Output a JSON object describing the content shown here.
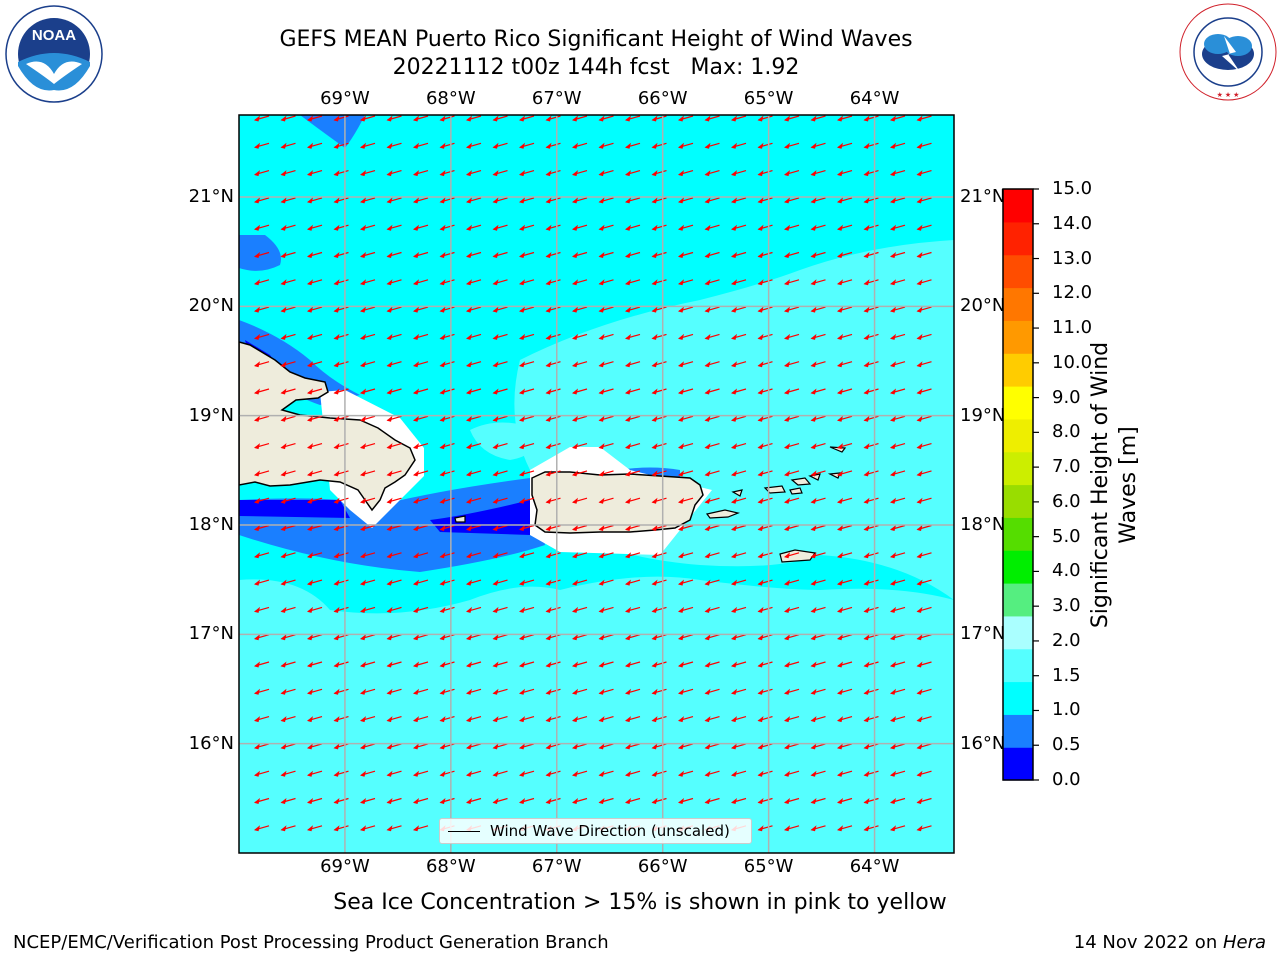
{
  "title": {
    "line1": "GEFS MEAN Puerto Rico Significant Height of Wind Waves",
    "line2": "20221112 t00z 144h fcst   Max: 1.92"
  },
  "map": {
    "lon_range": [
      -70,
      -63.25
    ],
    "lat_range": [
      15,
      21.75
    ],
    "lon_ticks": [
      "69°W",
      "68°W",
      "67°W",
      "66°W",
      "65°W",
      "64°W"
    ],
    "lat_ticks": [
      "21°N",
      "20°N",
      "19°N",
      "18°N",
      "17°N",
      "16°N"
    ],
    "grid": true,
    "vector_color": "#ff0000",
    "land_color": "#eeecdc",
    "ocean_color": "#00ffff"
  },
  "colorbar": {
    "title": "Significant Height of Wind Waves [m]",
    "title_line1": "Significant Height of Wind",
    "title_line2": "Waves [m]",
    "ticks": [
      "15.0",
      "14.0",
      "13.0",
      "12.0",
      "11.0",
      "10.0",
      "9.0",
      "8.0",
      "7.0",
      "6.0",
      "5.0",
      "4.0",
      "3.0",
      "2.0",
      "1.5",
      "1.0",
      "0.5",
      "0.0"
    ],
    "colors": [
      "#0000ff",
      "#1a7fff",
      "#00ffff",
      "#55ffff",
      "#aaffff",
      "#55ee80",
      "#00ee00",
      "#55dd00",
      "#99dd00",
      "#ccee00",
      "#eeee00",
      "#ffff00",
      "#ffcc00",
      "#ff9900",
      "#ff7700",
      "#ff4d00",
      "#ff2200",
      "#ff0000"
    ]
  },
  "legend": {
    "label": "Wind Wave Direction (unscaled)"
  },
  "ice_note": "Sea Ice Concentration > 15% is shown in pink to yellow",
  "footer": {
    "left": "NCEP/EMC/Verification Post Processing Product Generation Branch",
    "right_date": "14 Nov 2022 on ",
    "right_host": "Hera"
  },
  "logos": {
    "noaa": "NOAA",
    "nws": "NATIONAL WEATHER SERVICE"
  }
}
